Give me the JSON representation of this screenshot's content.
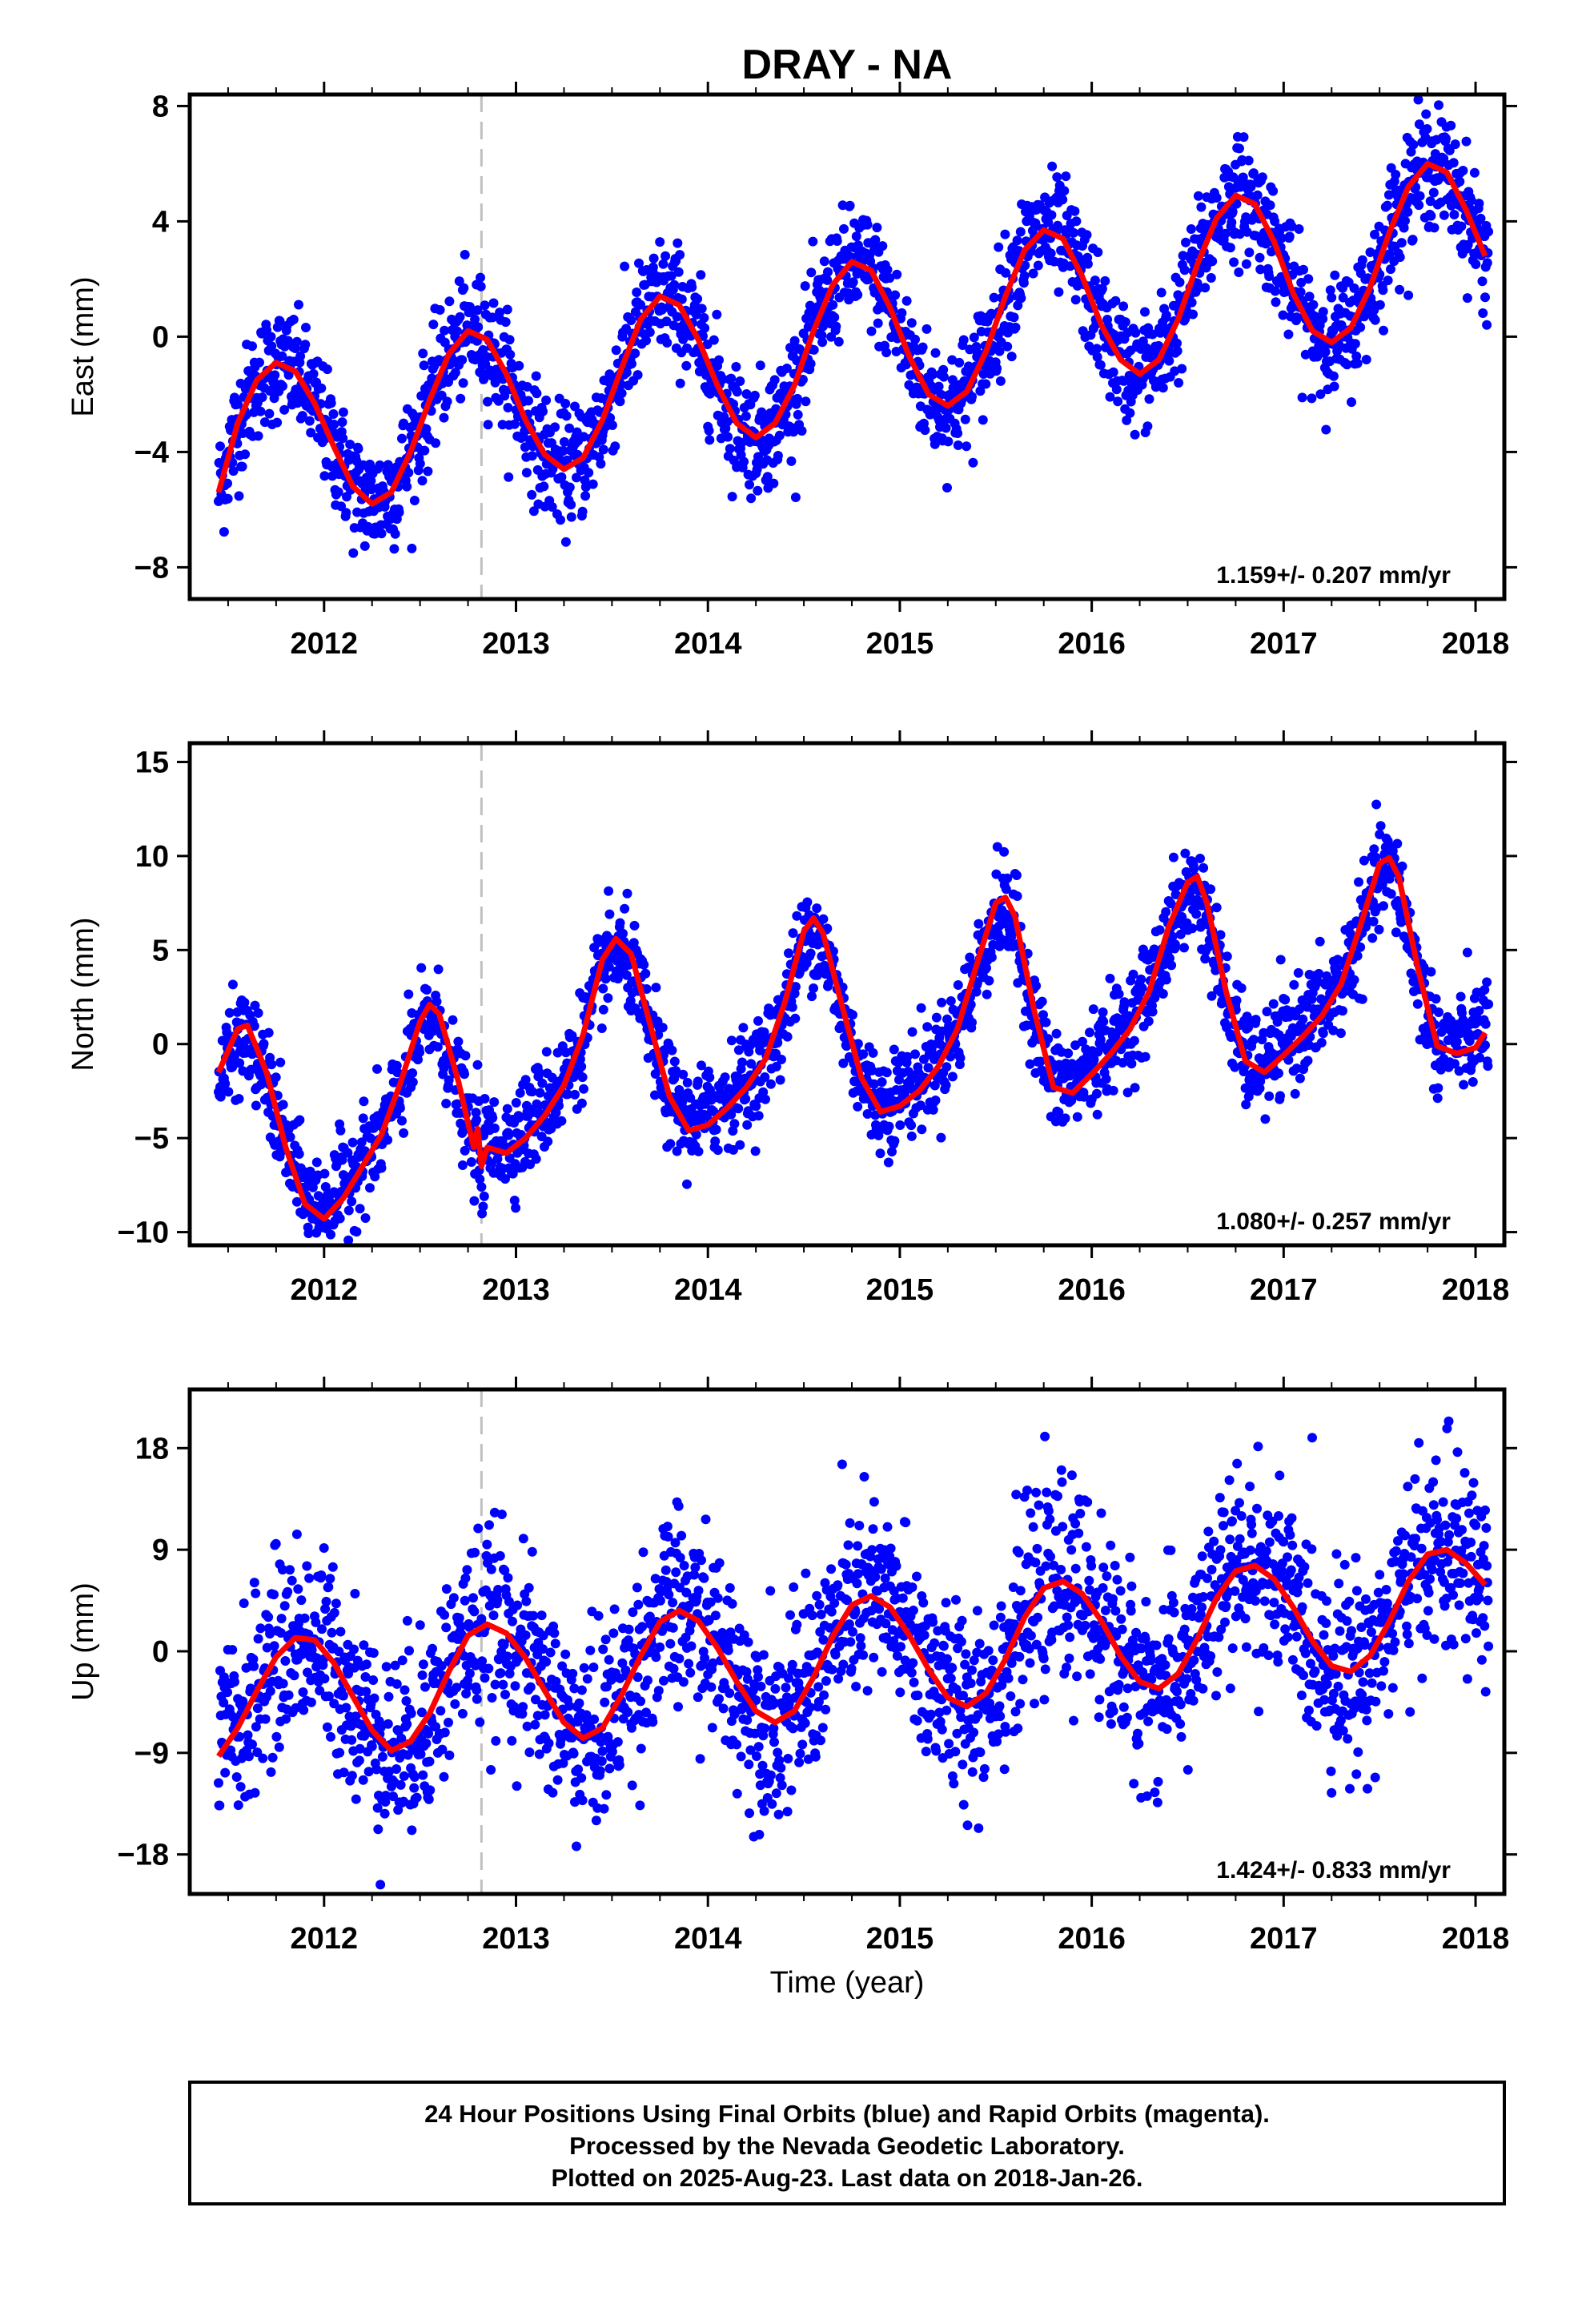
{
  "title": "DRAY - NA",
  "xlabel": "Time (year)",
  "caption": {
    "line1": "24 Hour Positions Using Final Orbits (blue) and Rapid Orbits (magenta).",
    "line2": "Processed by the Nevada Geodetic Laboratory.",
    "line3": "Plotted on 2025-Aug-23. Last data on 2018-Jan-26."
  },
  "colors": {
    "points": "#0000ff",
    "fit": "#ff0000",
    "event_line": "#c0c0c0",
    "axes": "#000000"
  },
  "chart_data": [
    {
      "type": "scatter",
      "panel": "east",
      "ylabel": "East (mm)",
      "rate_label": "1.159+/- 0.207 mm/yr",
      "xlim": [
        2011.3,
        2018.15
      ],
      "ylim": [
        -9.1,
        8.4
      ],
      "xticks": [
        2012,
        2013,
        2014,
        2015,
        2016,
        2017,
        2018
      ],
      "yticks": [
        -8,
        -4,
        0,
        4,
        8
      ],
      "event_lines_x": [
        2012.82
      ],
      "series": [
        {
          "name": "Final Orbits",
          "kind": "points",
          "trend": {
            "t0": 2011.45,
            "y0": -3.4,
            "rate": 1.159,
            "amp": 2.5,
            "peak": 2011.78,
            "noise": 1.0
          }
        },
        {
          "name": "Model fit",
          "kind": "line",
          "x": [
            2011.45,
            2011.55,
            2011.65,
            2011.75,
            2011.85,
            2011.95,
            2012.05,
            2012.15,
            2012.25,
            2012.35,
            2012.45,
            2012.55,
            2012.65,
            2012.75,
            2012.85,
            2012.95,
            2013.05,
            2013.15,
            2013.25,
            2013.35,
            2013.45,
            2013.55,
            2013.65,
            2013.75,
            2013.85,
            2013.95,
            2014.05,
            2014.15,
            2014.25,
            2014.35,
            2014.45,
            2014.55,
            2014.65,
            2014.75,
            2014.85,
            2014.95,
            2015.05,
            2015.15,
            2015.25,
            2015.35,
            2015.45,
            2015.55,
            2015.65,
            2015.75,
            2015.85,
            2015.95,
            2016.05,
            2016.15,
            2016.25,
            2016.35,
            2016.45,
            2016.55,
            2016.65,
            2016.75,
            2016.85,
            2016.95,
            2017.05,
            2017.15,
            2017.25,
            2017.35,
            2017.45,
            2017.55,
            2017.65,
            2017.75,
            2017.85,
            2017.95,
            2018.05
          ],
          "y": [
            -5.4,
            -3.0,
            -1.5,
            -0.9,
            -1.2,
            -2.3,
            -3.8,
            -5.2,
            -5.8,
            -5.4,
            -4.0,
            -2.2,
            -0.6,
            0.2,
            -0.1,
            -1.3,
            -2.9,
            -4.1,
            -4.6,
            -4.2,
            -2.9,
            -1.1,
            0.6,
            1.4,
            1.1,
            -0.1,
            -1.7,
            -3.0,
            -3.5,
            -3.0,
            -1.7,
            0.2,
            1.8,
            2.6,
            2.3,
            1.0,
            -0.7,
            -2.0,
            -2.4,
            -1.9,
            -0.5,
            1.4,
            3.0,
            3.7,
            3.4,
            2.1,
            0.4,
            -0.8,
            -1.3,
            -0.8,
            0.6,
            2.5,
            4.1,
            4.9,
            4.6,
            3.3,
            1.5,
            0.2,
            -0.2,
            0.3,
            1.7,
            3.6,
            5.2,
            6.0,
            5.7,
            4.4,
            2.8
          ]
        }
      ]
    },
    {
      "type": "scatter",
      "panel": "north",
      "ylabel": "North (mm)",
      "rate_label": "1.080+/- 0.257 mm/yr",
      "xlim": [
        2011.3,
        2018.15
      ],
      "ylim": [
        -10.7,
        16.0
      ],
      "xticks": [
        2012,
        2013,
        2014,
        2015,
        2016,
        2017,
        2018
      ],
      "yticks": [
        -10,
        -5,
        0,
        5,
        10,
        15
      ],
      "event_lines_x": [
        2012.82
      ],
      "series": [
        {
          "name": "Final Orbits",
          "kind": "points",
          "trend": {
            "t0": 2011.45,
            "y0": -3.4,
            "rate": 1.08,
            "amp": 5.2,
            "peak": 2011.55,
            "noise": 1.3
          }
        },
        {
          "name": "Model fit",
          "kind": "line",
          "x": [
            2011.45,
            2011.55,
            2011.6,
            2011.7,
            2011.8,
            2011.9,
            2012.0,
            2012.1,
            2012.2,
            2012.3,
            2012.4,
            2012.5,
            2012.55,
            2012.6,
            2012.7,
            2012.75,
            2012.78,
            2012.8,
            2012.82,
            2012.85,
            2012.95,
            2013.05,
            2013.15,
            2013.25,
            2013.35,
            2013.45,
            2013.52,
            2013.6,
            2013.7,
            2013.8,
            2013.9,
            2014.0,
            2014.1,
            2014.2,
            2014.3,
            2014.4,
            2014.5,
            2014.55,
            2014.6,
            2014.7,
            2014.8,
            2014.9,
            2015.0,
            2015.1,
            2015.2,
            2015.3,
            2015.4,
            2015.5,
            2015.55,
            2015.6,
            2015.7,
            2015.8,
            2015.9,
            2016.0,
            2016.1,
            2016.2,
            2016.3,
            2016.4,
            2016.5,
            2016.55,
            2016.6,
            2016.7,
            2016.8,
            2016.9,
            2017.0,
            2017.1,
            2017.2,
            2017.3,
            2017.4,
            2017.5,
            2017.55,
            2017.6,
            2017.7,
            2017.8,
            2017.9,
            2018.0,
            2018.05
          ],
          "y": [
            -1.5,
            0.8,
            1.0,
            -1.5,
            -5.5,
            -8.5,
            -9.3,
            -8.2,
            -6.5,
            -4.8,
            -2.0,
            1.2,
            2.1,
            1.6,
            -2.0,
            -4.2,
            -5.5,
            -4.5,
            -6.5,
            -5.5,
            -5.8,
            -5.0,
            -3.8,
            -2.2,
            0.5,
            4.5,
            5.6,
            4.8,
            1.0,
            -2.8,
            -4.6,
            -4.3,
            -3.4,
            -2.3,
            -0.8,
            2.2,
            6.0,
            6.7,
            5.9,
            2.0,
            -1.8,
            -3.6,
            -3.3,
            -2.5,
            -1.2,
            0.8,
            4.2,
            7.5,
            7.8,
            6.8,
            1.8,
            -2.3,
            -2.6,
            -1.6,
            -0.5,
            0.8,
            2.8,
            6.2,
            8.6,
            8.9,
            7.5,
            2.8,
            -0.9,
            -1.5,
            -0.6,
            0.4,
            1.5,
            3.2,
            6.3,
            9.6,
            9.9,
            8.9,
            4.0,
            -0.1,
            -0.5,
            -0.2,
            0.6
          ]
        }
      ]
    },
    {
      "type": "scatter",
      "panel": "up",
      "ylabel": "Up (mm)",
      "rate_label": "1.424+/- 0.833 mm/yr",
      "xlim": [
        2011.3,
        2018.15
      ],
      "ylim": [
        -21.5,
        23.2
      ],
      "xticks": [
        2012,
        2013,
        2014,
        2015,
        2016,
        2017,
        2018
      ],
      "yticks": [
        -18,
        -9,
        0,
        9,
        18
      ],
      "event_lines_x": [
        2012.82
      ],
      "series": [
        {
          "name": "Final Orbits",
          "kind": "points",
          "trend": {
            "t0": 2011.45,
            "y0": -4.5,
            "rate": 1.424,
            "amp": 5.2,
            "peak": 2011.87,
            "noise": 4.2
          }
        },
        {
          "name": "Model fit",
          "kind": "line",
          "x": [
            2011.45,
            2011.55,
            2011.65,
            2011.75,
            2011.85,
            2011.95,
            2012.05,
            2012.15,
            2012.25,
            2012.35,
            2012.45,
            2012.55,
            2012.65,
            2012.75,
            2012.85,
            2012.95,
            2013.05,
            2013.15,
            2013.25,
            2013.35,
            2013.45,
            2013.55,
            2013.65,
            2013.75,
            2013.85,
            2013.95,
            2014.05,
            2014.15,
            2014.25,
            2014.35,
            2014.45,
            2014.55,
            2014.65,
            2014.75,
            2014.85,
            2014.95,
            2015.05,
            2015.15,
            2015.25,
            2015.35,
            2015.45,
            2015.55,
            2015.65,
            2015.75,
            2015.85,
            2015.95,
            2016.05,
            2016.15,
            2016.25,
            2016.35,
            2016.45,
            2016.55,
            2016.65,
            2016.75,
            2016.85,
            2016.95,
            2017.05,
            2017.15,
            2017.25,
            2017.35,
            2017.45,
            2017.55,
            2017.65,
            2017.75,
            2017.85,
            2017.95,
            2018.05
          ],
          "y": [
            -9.3,
            -6.8,
            -3.5,
            -0.5,
            1.2,
            1.0,
            -1.0,
            -4.0,
            -7.0,
            -8.8,
            -8.0,
            -5.5,
            -1.8,
            1.4,
            2.4,
            1.6,
            -0.6,
            -3.5,
            -6.3,
            -7.7,
            -6.8,
            -3.9,
            -0.4,
            2.6,
            3.6,
            2.7,
            0.3,
            -2.7,
            -5.3,
            -6.3,
            -5.3,
            -2.3,
            1.3,
            4.1,
            4.9,
            3.9,
            1.4,
            -1.6,
            -4.1,
            -4.9,
            -3.7,
            -0.7,
            3.0,
            5.6,
            6.2,
            5.1,
            2.7,
            -0.4,
            -2.7,
            -3.3,
            -2.0,
            1.1,
            4.7,
            7.1,
            7.6,
            6.4,
            3.9,
            0.9,
            -1.3,
            -1.8,
            -0.4,
            2.6,
            6.2,
            8.6,
            9.0,
            7.8,
            5.9
          ]
        }
      ]
    }
  ]
}
